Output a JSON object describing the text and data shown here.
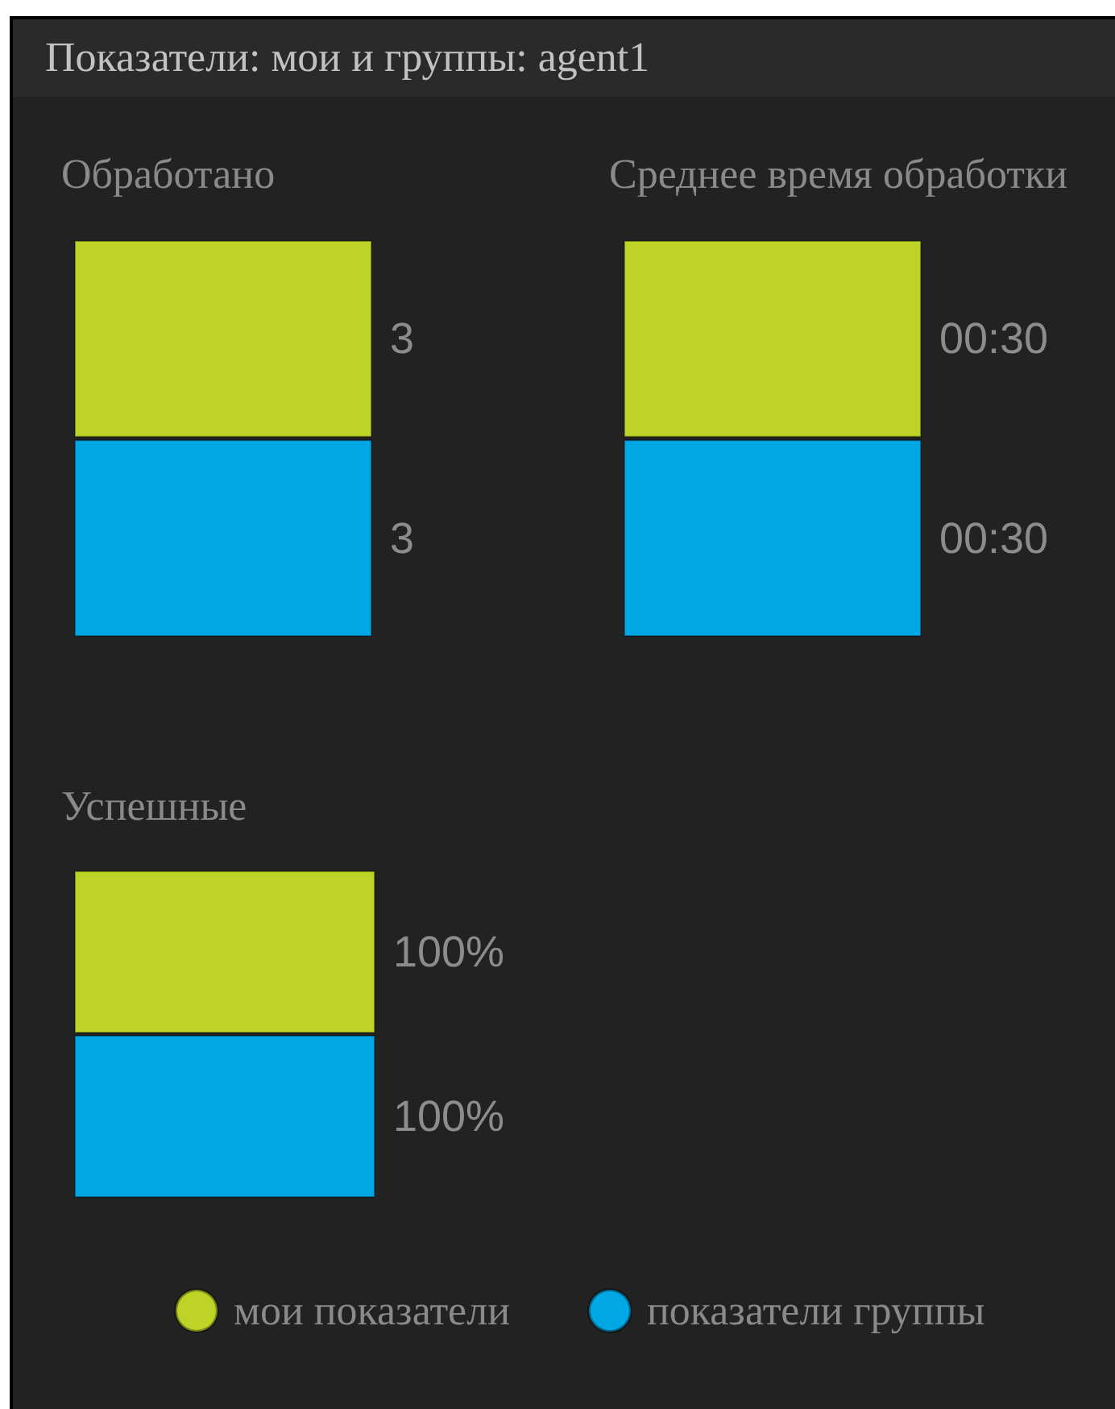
{
  "chart_data": [
    {
      "type": "other",
      "title": "Показатели: мои и группы: agent1"
    },
    {
      "type": "bar",
      "orientation": "horizontal",
      "title": "Обработано",
      "categories": [
        null
      ],
      "data_labels": true,
      "series": [
        {
          "color": "#bdd325",
          "values": [
            3
          ]
        },
        {
          "color": "#00a7e5",
          "values": [
            3
          ]
        }
      ]
    },
    {
      "type": "bar",
      "orientation": "horizontal",
      "title": "Среднее время обработки",
      "categories": [
        null
      ],
      "series": [
        {
          "color": "#bdd325",
          "values": [
            30
          ],
          "value_labels": [
            "00:30"
          ]
        },
        {
          "color": "#00a7e5",
          "values": [
            30
          ],
          "value_labels": [
            "00:30"
          ]
        }
      ]
    },
    {
      "type": "bar",
      "orientation": "horizontal",
      "title": "Успешные",
      "categories": [
        null
      ],
      "legend": "bottom",
      "series": [
        {
          "name": "мои показатели",
          "color": "#bdd325",
          "values": [
            100
          ],
          "value_labels": [
            "100%"
          ]
        },
        {
          "name": "показатели группы",
          "color": "#00a7e5",
          "values": [
            100
          ],
          "value_labels": [
            "100%"
          ]
        }
      ]
    }
  ]
}
